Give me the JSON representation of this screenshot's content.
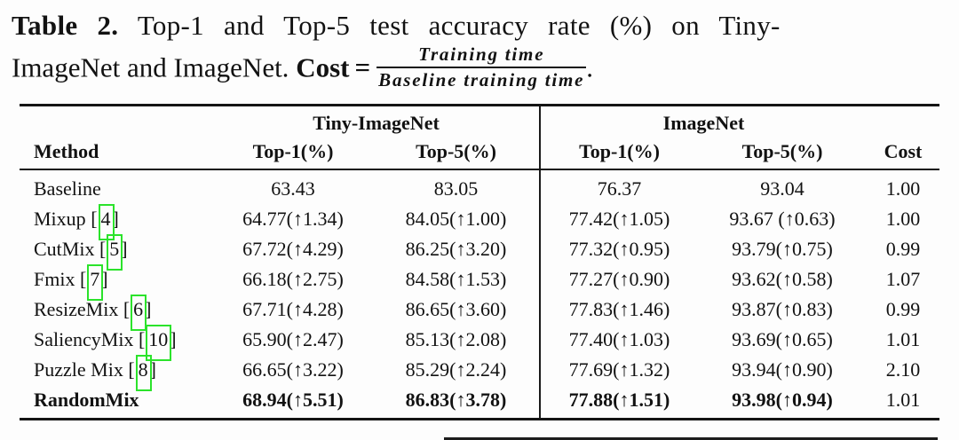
{
  "colors": {
    "annotation_green": "#2be32b",
    "text": "#121212",
    "rule": "#141414"
  },
  "caption": {
    "label": "Table 2.",
    "after_label": " Top-1 and Top-5 test accuracy rate (%) on Tiny-",
    "line2": "ImageNet and ImageNet.",
    "cost_word": "Cost",
    "equals": "=",
    "frac_numerator": "Training time",
    "frac_denominator": "Baseline training time",
    "period": "."
  },
  "table": {
    "groups": {
      "tiny": "Tiny-ImageNet",
      "imagenet": "ImageNet"
    },
    "columns": [
      "Method",
      "Top-1(%)",
      "Top-5(%)",
      "Top-1(%)",
      "Top-5(%)",
      "Cost"
    ],
    "rows": [
      {
        "method": "Baseline",
        "cite": "",
        "bold": false,
        "cells": [
          "63.43",
          "83.05",
          "76.37",
          "93.04",
          "1.00"
        ]
      },
      {
        "method": "Mixup",
        "cite": "4",
        "bold": false,
        "cells": [
          "64.77(↑1.34)",
          "84.05(↑1.00)",
          "77.42(↑1.05)",
          "93.67 (↑0.63)",
          "1.00"
        ]
      },
      {
        "method": "CutMix",
        "cite": "5",
        "bold": false,
        "cells": [
          "67.72(↑4.29)",
          "86.25(↑3.20)",
          "77.32(↑0.95)",
          "93.79(↑0.75)",
          "0.99"
        ]
      },
      {
        "method": "Fmix",
        "cite": "7",
        "bold": false,
        "cells": [
          "66.18(↑2.75)",
          "84.58(↑1.53)",
          "77.27(↑0.90)",
          "93.62(↑0.58)",
          "1.07"
        ]
      },
      {
        "method": "ResizeMix",
        "cite": "6",
        "bold": false,
        "cells": [
          "67.71(↑4.28)",
          "86.65(↑3.60)",
          "77.83(↑1.46)",
          "93.87(↑0.83)",
          "0.99"
        ]
      },
      {
        "method": "SaliencyMix",
        "cite": "10",
        "bold": false,
        "cells": [
          "65.90(↑2.47)",
          "85.13(↑2.08)",
          "77.40(↑1.03)",
          "93.69(↑0.65)",
          "1.01"
        ]
      },
      {
        "method": "Puzzle Mix",
        "cite": "8",
        "bold": false,
        "cells": [
          "66.65(↑3.22)",
          "85.29(↑2.24)",
          "77.69(↑1.32)",
          "93.94(↑0.90)",
          "2.10"
        ]
      },
      {
        "method": "RandomMix",
        "cite": "",
        "bold": true,
        "cells": [
          "68.94(↑5.51)",
          "86.83(↑3.78)",
          "77.88(↑1.51)",
          "93.98(↑0.94)",
          "1.01"
        ]
      }
    ]
  }
}
